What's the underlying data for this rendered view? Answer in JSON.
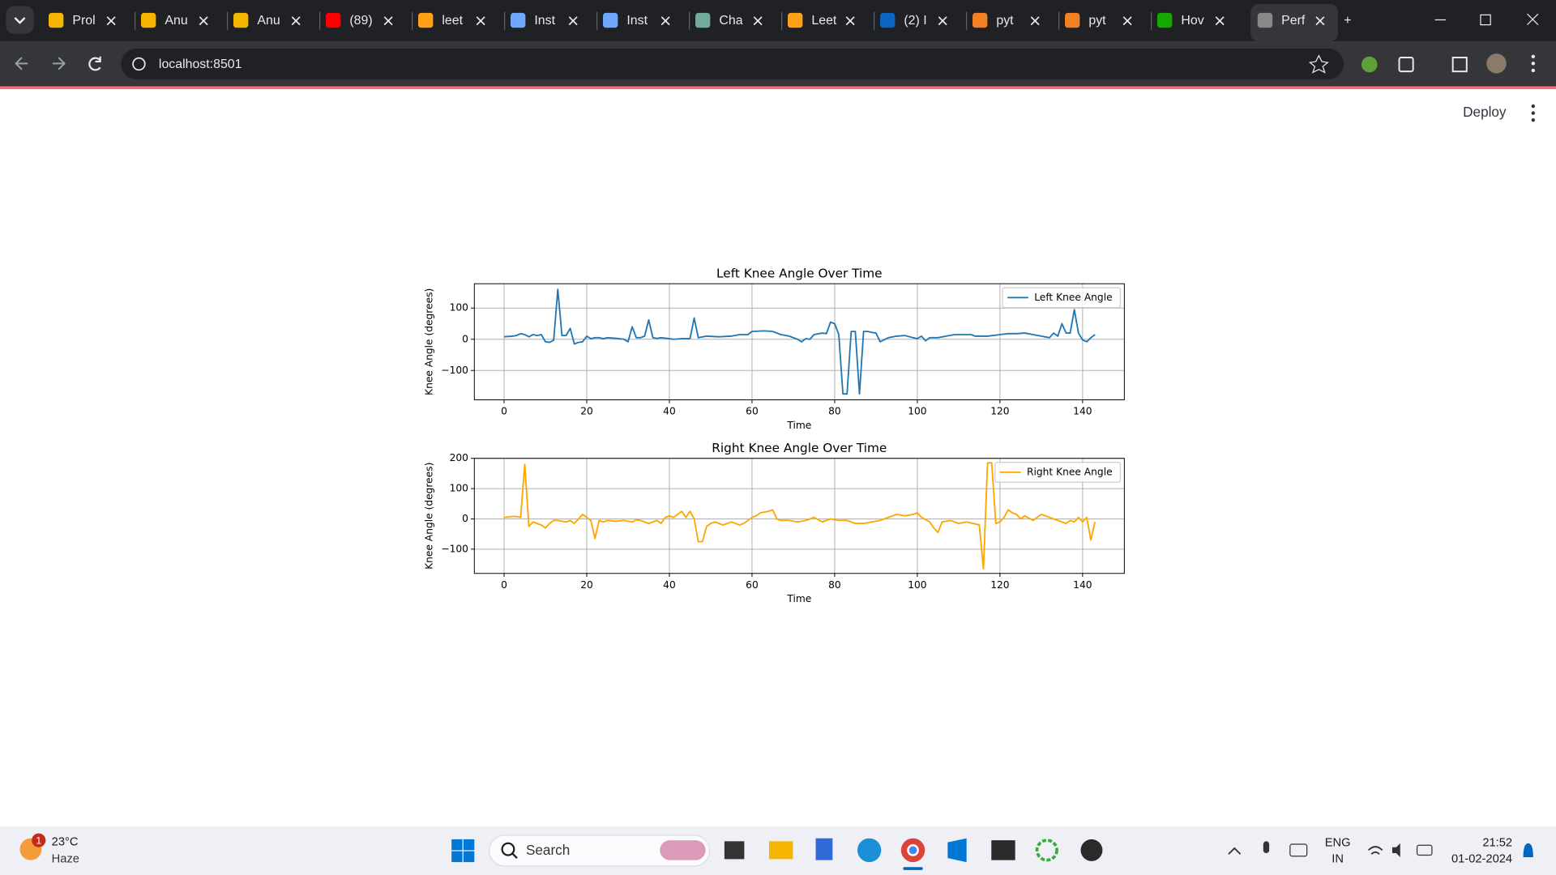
{
  "browser": {
    "tabs": [
      "Prol",
      "Anu",
      "Anu",
      "(89)",
      "leet",
      "Inst",
      "Inst",
      "Cha",
      "Leet",
      "(2) I",
      "pyt",
      "pyt",
      "Hov",
      "Perf"
    ],
    "address": "localhost:8501"
  },
  "app": {
    "deploy": "Deploy"
  },
  "chart_data": [
    {
      "type": "line",
      "title": "Left Knee Angle Over Time",
      "xlabel": "Time",
      "ylabel": "Knee Angle (degrees)",
      "x": [
        0,
        2,
        3,
        4,
        5,
        6,
        7,
        8,
        9,
        10,
        11,
        12,
        13,
        14,
        15,
        16,
        17,
        18,
        19,
        20,
        21,
        22,
        23,
        24,
        25,
        27,
        29,
        30,
        31,
        32,
        33,
        34,
        35,
        36,
        37,
        38,
        40,
        41,
        43,
        45,
        46,
        47,
        49,
        52,
        55,
        57,
        59,
        60,
        63,
        65,
        67,
        69,
        71,
        72,
        73,
        74,
        75,
        77,
        78,
        79,
        80,
        81,
        82,
        83,
        84,
        85,
        86,
        87,
        88,
        89,
        90,
        91,
        93,
        95,
        97,
        99,
        100,
        101,
        102,
        103,
        105,
        107,
        109,
        111,
        113,
        114,
        117,
        120,
        122,
        124,
        126,
        128,
        130,
        132,
        133,
        134,
        135,
        136,
        137,
        138,
        139,
        140,
        141,
        142,
        143
      ],
      "series": [
        {
          "name": "Left Knee Angle",
          "color": "#1f77b4",
          "values": [
            8,
            10,
            12,
            18,
            15,
            8,
            15,
            12,
            15,
            -8,
            -10,
            -3,
            160,
            12,
            12,
            35,
            -15,
            -10,
            -8,
            10,
            2,
            5,
            5,
            2,
            5,
            3,
            0,
            -8,
            40,
            5,
            5,
            10,
            62,
            5,
            3,
            5,
            2,
            0,
            2,
            2,
            68,
            5,
            10,
            8,
            10,
            15,
            15,
            25,
            27,
            25,
            15,
            10,
            0,
            -8,
            2,
            0,
            15,
            20,
            18,
            55,
            50,
            15,
            -175,
            -175,
            25,
            25,
            -175,
            25,
            25,
            22,
            20,
            -8,
            5,
            10,
            12,
            5,
            2,
            10,
            -5,
            5,
            5,
            10,
            15,
            15,
            15,
            10,
            10,
            15,
            18,
            18,
            20,
            15,
            10,
            5,
            20,
            10,
            50,
            20,
            20,
            95,
            20,
            -2,
            -8,
            5,
            15
          ]
        }
      ],
      "xlim": [
        -7.2,
        150.1
      ],
      "ylim": [
        -194,
        178
      ],
      "xticks": [
        0,
        20,
        40,
        60,
        80,
        100,
        120,
        140
      ],
      "yticks": [
        {
          "value": -100,
          "label": "−100"
        },
        0,
        100
      ],
      "grid": true,
      "legend": "upper right"
    },
    {
      "type": "line",
      "title": "Right Knee Angle Over Time",
      "xlabel": "Time",
      "ylabel": "Knee Angle (degrees)",
      "x": [
        0,
        2,
        3,
        4,
        5,
        6,
        7,
        8,
        9,
        10,
        11,
        12,
        13,
        15,
        16,
        17,
        19,
        20,
        21,
        22,
        23,
        24,
        25,
        27,
        29,
        31,
        32,
        33,
        35,
        36,
        37,
        38,
        39,
        40,
        41,
        42,
        43,
        44,
        45,
        46,
        47,
        48,
        49,
        50,
        51,
        53,
        55,
        56,
        57,
        58,
        59,
        60,
        61,
        62,
        64,
        65,
        66,
        67,
        69,
        71,
        73,
        75,
        77,
        79,
        81,
        83,
        85,
        87,
        89,
        91,
        93,
        95,
        97,
        99,
        100,
        101,
        103,
        104,
        105,
        106,
        108,
        110,
        112,
        115,
        116,
        117,
        118,
        119,
        120,
        121,
        122,
        123,
        124,
        125,
        126,
        128,
        130,
        132,
        134,
        136,
        137,
        138,
        139,
        140,
        141,
        142,
        143
      ],
      "series": [
        {
          "name": "Right Knee Angle",
          "color": "#ffa500",
          "values": [
            5,
            8,
            8,
            5,
            180,
            -25,
            -10,
            -15,
            -20,
            -30,
            -15,
            -5,
            -5,
            -10,
            -5,
            -15,
            15,
            5,
            -5,
            -65,
            -5,
            -10,
            -5,
            -8,
            -5,
            -10,
            -3,
            -5,
            -15,
            -10,
            -5,
            -15,
            5,
            10,
            5,
            15,
            25,
            5,
            25,
            0,
            -75,
            -75,
            -25,
            -15,
            -10,
            -20,
            -10,
            -15,
            -20,
            -15,
            -5,
            5,
            10,
            20,
            25,
            30,
            0,
            -5,
            -5,
            -10,
            -5,
            5,
            -10,
            0,
            -5,
            -5,
            -15,
            -15,
            -10,
            -5,
            5,
            15,
            10,
            15,
            20,
            5,
            -10,
            -30,
            -45,
            -10,
            -5,
            -15,
            -10,
            -20,
            -165,
            185,
            185,
            -15,
            -10,
            5,
            30,
            20,
            15,
            0,
            10,
            -5,
            15,
            5,
            -5,
            -15,
            -5,
            -10,
            5,
            -10,
            5,
            -70,
            -10
          ]
        }
      ],
      "xlim": [
        -7.2,
        150.1
      ],
      "ylim": [
        -180,
        200
      ],
      "xticks": [
        0,
        20,
        40,
        60,
        80,
        100,
        120,
        140
      ],
      "yticks": [
        {
          "value": -100,
          "label": "−100"
        },
        0,
        100,
        200
      ],
      "grid": true,
      "legend": "upper right"
    }
  ],
  "taskbar": {
    "badge": "1",
    "temp": "23°C",
    "weather": "Haze",
    "search": "Search",
    "lang": "ENG",
    "region": "IN",
    "time": "21:52",
    "date": "01-02-2024"
  }
}
